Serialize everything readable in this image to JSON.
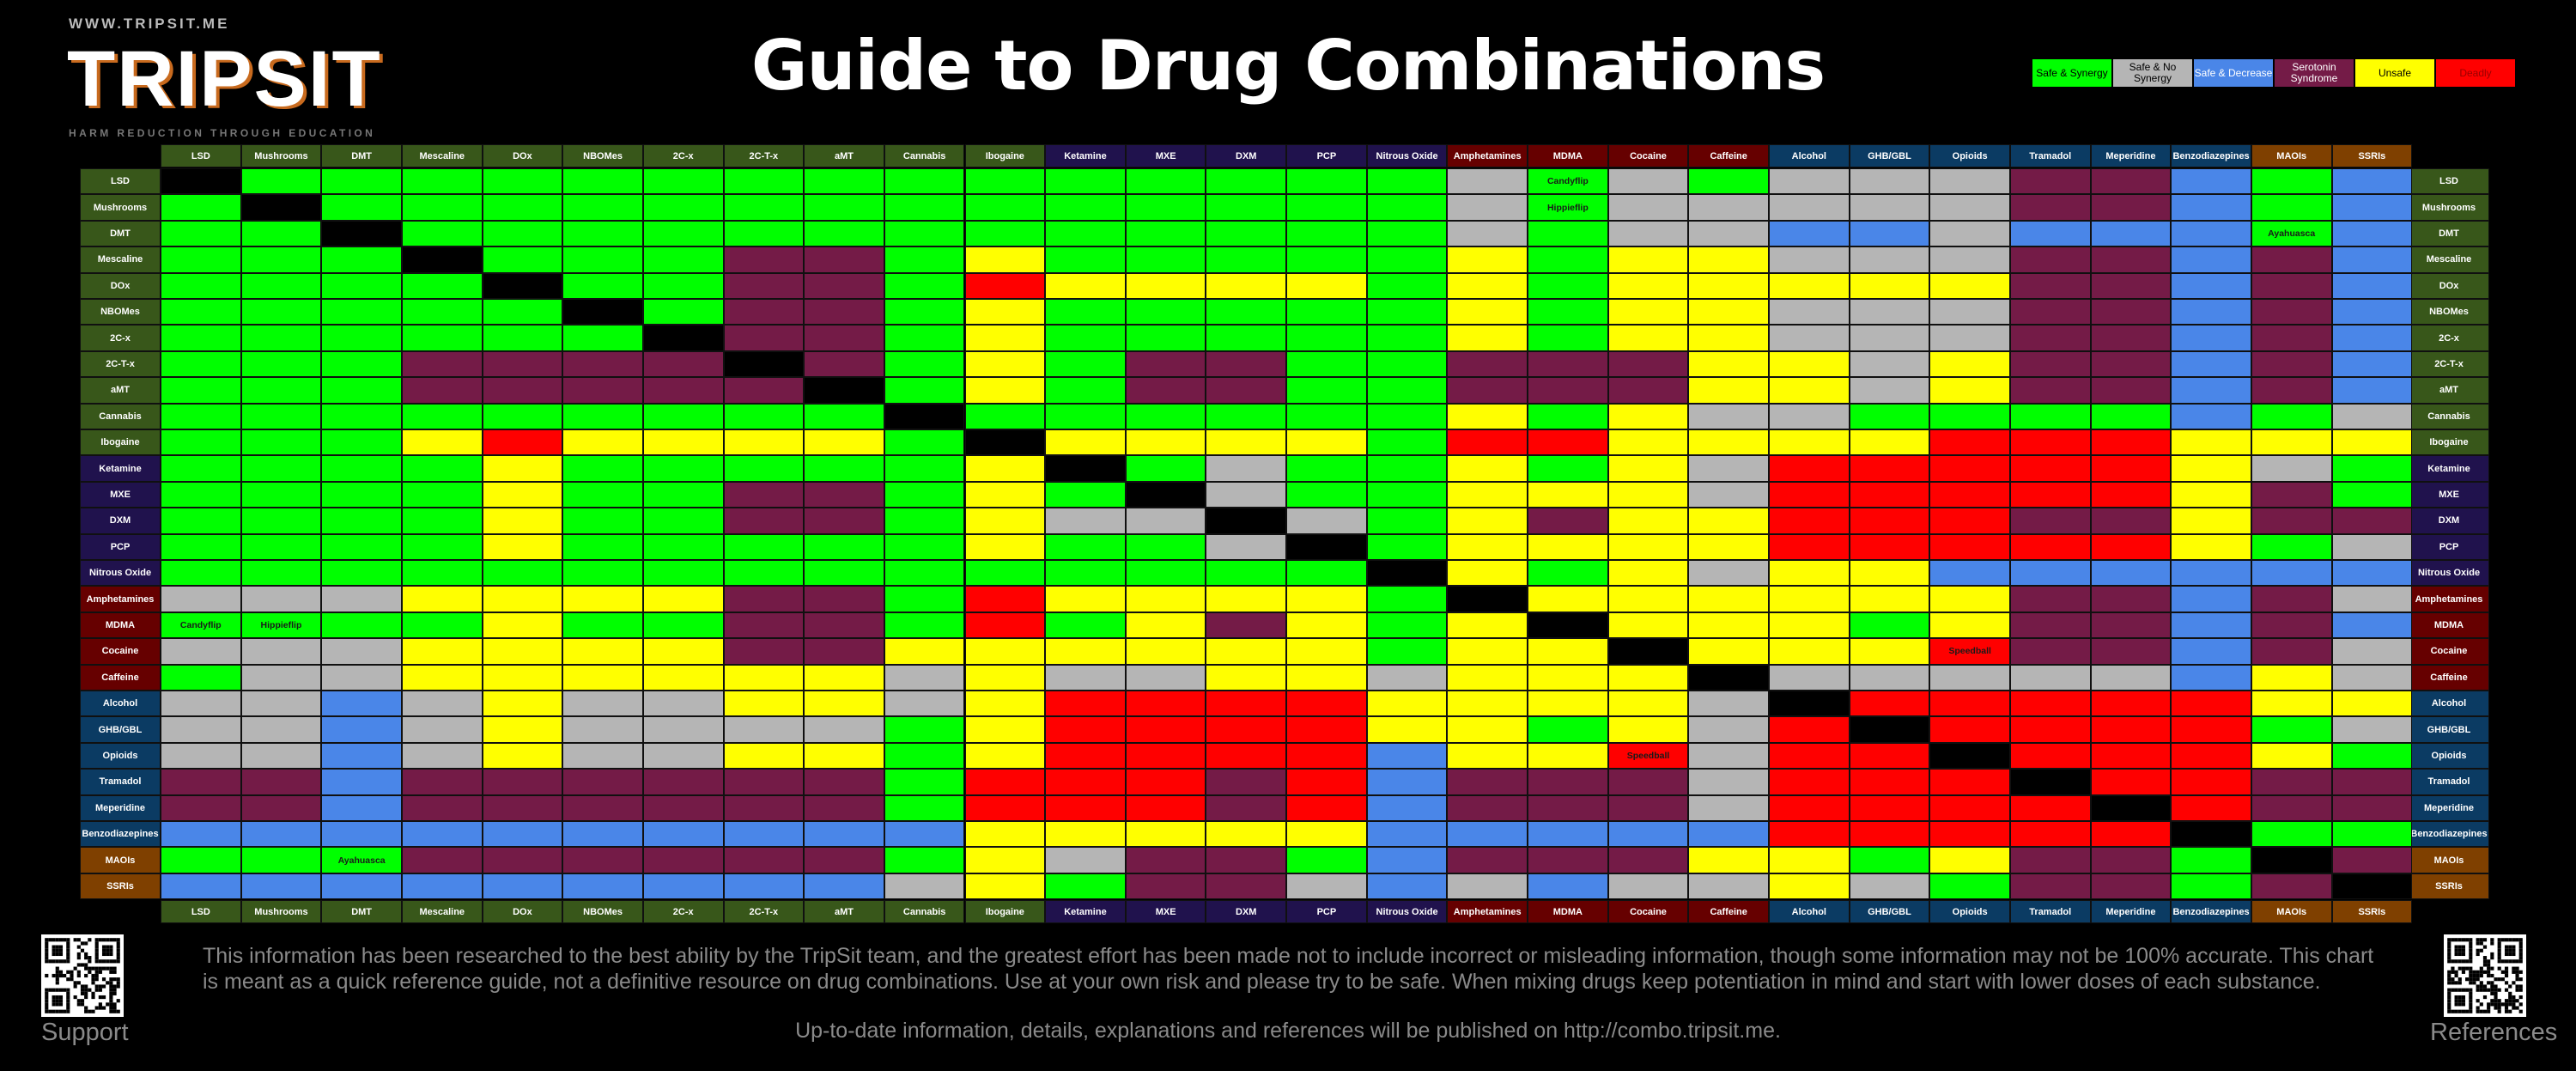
{
  "logo": {
    "url": "WWW.TRIPSIT.ME",
    "wordmark": "TRIPSIT",
    "tagline": "HARM REDUCTION THROUGH EDUCATION"
  },
  "title": "Guide to Drug Combinations",
  "legend": [
    {
      "code": "G",
      "label": "Safe & Synergy",
      "color": "#00ff00"
    },
    {
      "code": "S",
      "label": "Safe & No Synergy",
      "color": "#b5b5b5"
    },
    {
      "code": "B",
      "label": "Safe & Decrease",
      "color": "#4a86e8"
    },
    {
      "code": "P",
      "label": "Serotonin Syndrome",
      "color": "#741b47"
    },
    {
      "code": "Y",
      "label": "Unsafe",
      "color": "#ffff00"
    },
    {
      "code": "R",
      "label": "Deadly",
      "color": "#ff0000"
    }
  ],
  "chart_data": {
    "type": "table",
    "drugs": [
      {
        "name": "LSD",
        "group": "psychedelic"
      },
      {
        "name": "Mushrooms",
        "group": "psychedelic"
      },
      {
        "name": "DMT",
        "group": "psychedelic"
      },
      {
        "name": "Mescaline",
        "group": "psychedelic"
      },
      {
        "name": "DOx",
        "group": "psychedelic"
      },
      {
        "name": "NBOMes",
        "group": "psychedelic"
      },
      {
        "name": "2C-x",
        "group": "psychedelic"
      },
      {
        "name": "2C-T-x",
        "group": "psychedelic"
      },
      {
        "name": "aMT",
        "group": "psychedelic"
      },
      {
        "name": "Cannabis",
        "group": "psychedelic"
      },
      {
        "name": "Ibogaine",
        "group": "psychedelic"
      },
      {
        "name": "Ketamine",
        "group": "dissociative"
      },
      {
        "name": "MXE",
        "group": "dissociative"
      },
      {
        "name": "DXM",
        "group": "dissociative"
      },
      {
        "name": "PCP",
        "group": "dissociative"
      },
      {
        "name": "Nitrous Oxide",
        "group": "dissociative"
      },
      {
        "name": "Amphetamines",
        "group": "stimulant"
      },
      {
        "name": "MDMA",
        "group": "stimulant"
      },
      {
        "name": "Cocaine",
        "group": "stimulant"
      },
      {
        "name": "Caffeine",
        "group": "stimulant"
      },
      {
        "name": "Alcohol",
        "group": "depressant"
      },
      {
        "name": "GHB/GBL",
        "group": "depressant"
      },
      {
        "name": "Opioids",
        "group": "depressant"
      },
      {
        "name": "Tramadol",
        "group": "depressant"
      },
      {
        "name": "Meperidine",
        "group": "depressant"
      },
      {
        "name": "Benzodiazepines",
        "group": "depressant"
      },
      {
        "name": "MAOIs",
        "group": "other"
      },
      {
        "name": "SSRIs",
        "group": "other"
      }
    ],
    "group_colors": {
      "psychedelic": "#38571a",
      "dissociative": "#20124d",
      "stimulant": "#660000",
      "depressant": "#0b3b63",
      "other": "#7f4000"
    },
    "matrix": [
      "KGGGGGGGGGGGGGGGSGSGSSSPPBGB",
      "GKGGGGGGGGGGGGGGSGSSSSSPPBGB",
      "GGKGGGGGGGGGGGGGSGSSBBSBBBGB",
      "GGGKGGGPPGYGGGGGYGYYSSSPPBPB",
      "GGGGKGGPPGRYYYYGYGYYYYYPPBPB",
      "GGGGGKGPPGYGGGGGYGYYSSSPPBPB",
      "GGGGGGKPPGYGGGGGYGYYSSSPPBPB",
      "GGGPPPPKPGYGPPGGPPPYYSYPPBPB",
      "GGGPPPPPKGYGPPGGPPPYYSYPPBPB",
      "GGGGGGGGGKGGGGGGYGYSSGGGGBGS",
      "GGGYRYYYYGKYYYYGRRYYYYRRRYYY",
      "GGGGYGGGGGYKGSGGYGYSRRRRRYSG",
      "GGGGYGGPPGYGKSGGYYYSRRRRRYPG",
      "GGGGYGGPPGYSSKSGYPYYRRRPPYPP",
      "GGGGYGGGGGYGGSKGYYYYRRRRRYGS",
      "GGGGGGGGGGGGGGGKYGYSYYBBBBBB",
      "SSSYYYYPPGRYYYYGKYYYYYYPPBPS",
      "GGGGYGGPPGRGYPYGYKYYYGYPPBPB",
      "SSSYYYYPPYYYYYYGYYKYYYRPPBPS",
      "GSSYYYYYYSYSSYYSYYYKSSSSSBYS",
      "SSBSYSSYYSYRRRRYYYYSKRRRRRYY",
      "SSBSYSSSSGYRRRRYYGYSRKRRRRGS",
      "SSBSYSSYYGYRRRRBYYRSRRKRRRYG",
      "PPBPPPPPPGRRRPRBPPPSRRRKRRPP",
      "PPBPPPPPPGRRRPRBPPPSRRRRKRPP",
      "BBBBBBBBBBYYYYYBBBBBRRRRRKGG",
      "GGGPPPPPPGYSPPGBPPPYYGYPPGKP",
      "BBBBBBBBBSYGPPSBSBSSYSGPPGPK"
    ],
    "annotations": [
      {
        "row": "LSD",
        "col": "MDMA",
        "text": "Candyflip"
      },
      {
        "row": "Mushrooms",
        "col": "MDMA",
        "text": "Hippieflip"
      },
      {
        "row": "MDMA",
        "col": "LSD",
        "text": "Candyflip"
      },
      {
        "row": "MDMA",
        "col": "Mushrooms",
        "text": "Hippieflip"
      },
      {
        "row": "DMT",
        "col": "MAOIs",
        "text": "Ayahuasca"
      },
      {
        "row": "MAOIs",
        "col": "DMT",
        "text": "Ayahuasca"
      },
      {
        "row": "Cocaine",
        "col": "Opioids",
        "text": "Speedball"
      },
      {
        "row": "Opioids",
        "col": "Cocaine",
        "text": "Speedball"
      }
    ]
  },
  "footer": {
    "disclaimer": "This information has been researched to the best ability by the TripSit team, and the greatest effort has been made not to include incorrect or misleading information, though some information may not be 100% accurate. This chart is meant as a quick reference guide, not a definitive resource on drug combinations. Use at your own risk and please try to be safe. When mixing drugs keep potentiation in mind and start with lower doses of each substance.",
    "link_text": "Up-to-date information, details, explanations and references will be published on http://combo.tripsit.me.",
    "qr_left_label": "Support",
    "qr_right_label": "References"
  }
}
